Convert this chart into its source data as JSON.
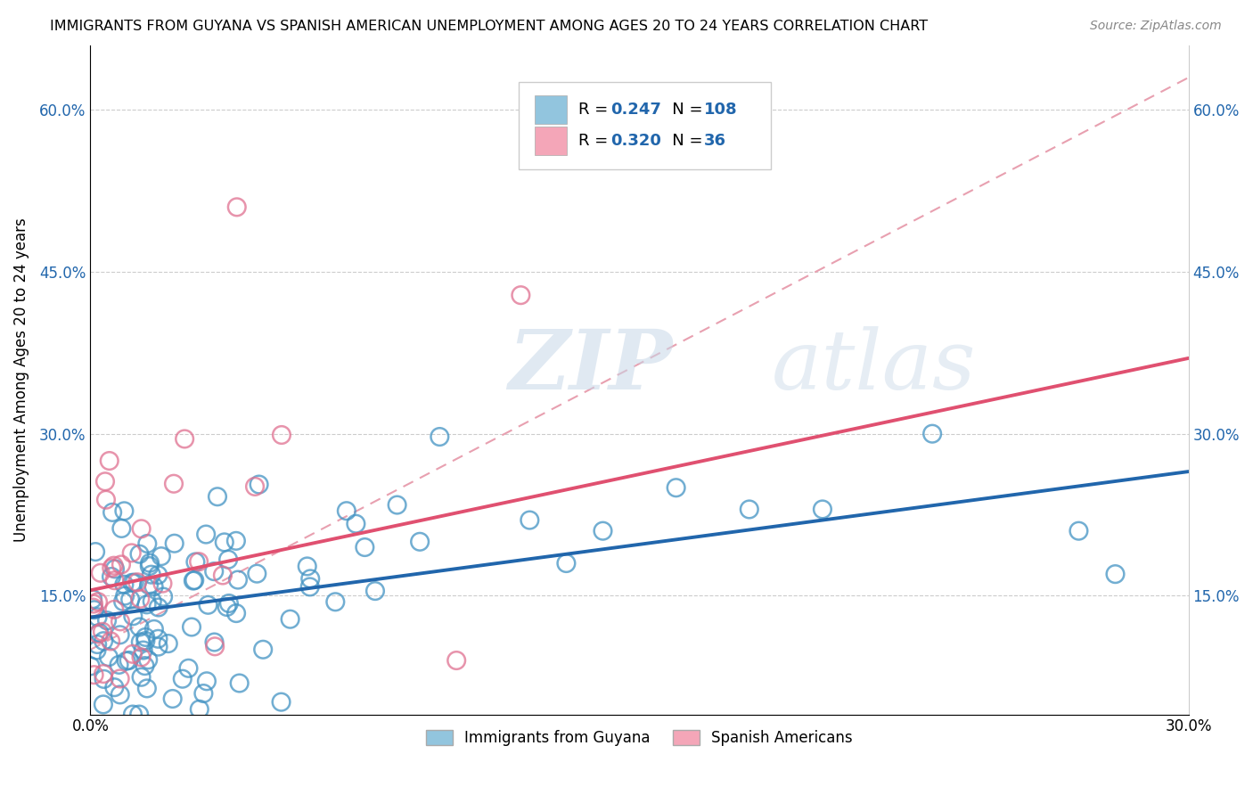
{
  "title": "IMMIGRANTS FROM GUYANA VS SPANISH AMERICAN UNEMPLOYMENT AMONG AGES 20 TO 24 YEARS CORRELATION CHART",
  "source": "Source: ZipAtlas.com",
  "ylabel": "Unemployment Among Ages 20 to 24 years",
  "xlim": [
    0.0,
    0.3
  ],
  "ylim": [
    0.04,
    0.66
  ],
  "xtick_vals": [
    0.0,
    0.05,
    0.1,
    0.15,
    0.2,
    0.25,
    0.3
  ],
  "xtick_labels": [
    "0.0%",
    "",
    "",
    "",
    "",
    "",
    "30.0%"
  ],
  "ytick_vals": [
    0.15,
    0.3,
    0.45,
    0.6
  ],
  "ytick_labels": [
    "15.0%",
    "30.0%",
    "45.0%",
    "60.0%"
  ],
  "blue_color": "#92c5de",
  "pink_color": "#f4a6b8",
  "blue_edge_color": "#4393c3",
  "pink_edge_color": "#e07090",
  "blue_line_color": "#2166ac",
  "pink_line_color": "#e05070",
  "dashed_line_color": "#e8a0b0",
  "R_blue": 0.247,
  "N_blue": 108,
  "R_pink": 0.32,
  "N_pink": 36,
  "legend_label_blue": "Immigrants from Guyana",
  "legend_label_pink": "Spanish Americans",
  "watermark": "ZIPatlas",
  "blue_trend": [
    0.13,
    0.265
  ],
  "pink_trend": [
    0.155,
    0.37
  ],
  "dashed_trend": [
    0.1,
    0.63
  ]
}
